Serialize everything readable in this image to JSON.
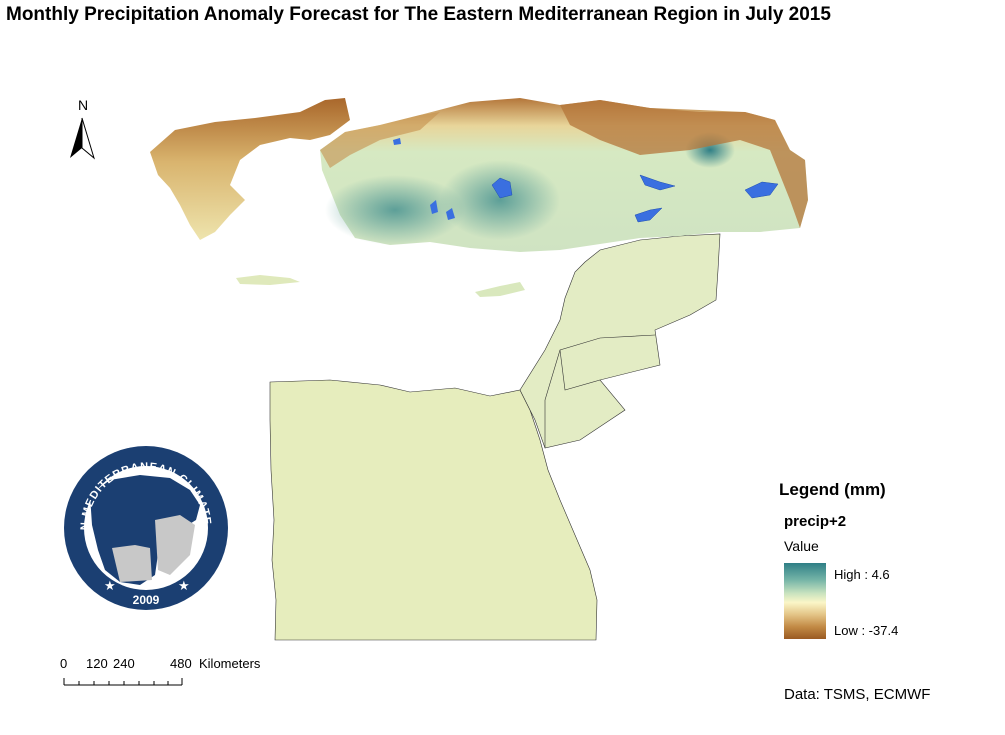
{
  "title": "Monthly Precipitation Anomaly Forecast for The Eastern Mediterranean Region in July 2015",
  "north_arrow": {
    "label": "N",
    "icon": "north-arrow-icon"
  },
  "legend": {
    "title": "Legend (mm)",
    "layer_name": "precip+2",
    "value_label": "Value",
    "high_label": "High : 4.6",
    "low_label": "Low : -37.4",
    "high_value": 4.6,
    "low_value": -37.4,
    "colors": {
      "high": "#2f7f86",
      "mid": "#fbf6c8",
      "low": "#9a5a22"
    }
  },
  "scale_bar": {
    "ticks": [
      "0",
      "120",
      "240",
      "480"
    ],
    "unit": "Kilometers"
  },
  "logo": {
    "text_top": "EASTERN MEDITERRANEAN CLIMATE CENTRE",
    "year": "2009",
    "colors": {
      "ring": "#1b3f72",
      "land": "#1b3f72",
      "sea": "#ffffff",
      "other_land": "#c8c8c8"
    }
  },
  "credit": "Data: TSMS, ECMWF",
  "map_colors": {
    "egypt": "#e6edbd",
    "levant": "#e3ecc4",
    "turkey_core": "#cfe3c2",
    "wet_blob": "#6fae9f",
    "dry_edge": "#b4763a",
    "water": "#3a6fe0"
  }
}
